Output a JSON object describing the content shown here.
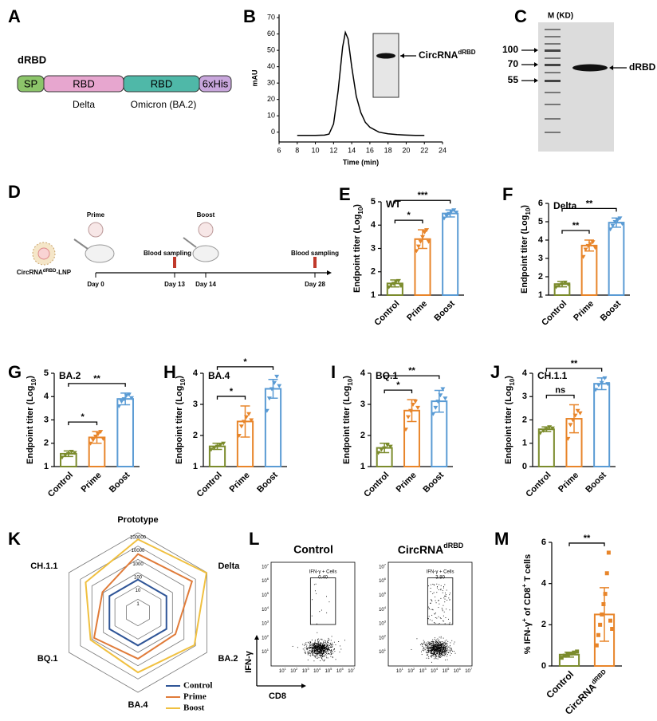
{
  "panels": {
    "A": {
      "label": "A",
      "title": "dRBD",
      "segments": [
        "SP",
        "RBD",
        "RBD",
        "6xHis"
      ],
      "captions": [
        "Delta",
        "Omicron (BA.2)"
      ]
    },
    "C": {
      "label": "C",
      "marker_header": "M (KD)",
      "markers": [
        100,
        70,
        55
      ],
      "band_label": "dRBD"
    },
    "D": {
      "label": "D",
      "vaccine": "CircRNA",
      "vaccine_sup": "dRBD",
      "vaccine_end": "-LNP",
      "prime": "Prime",
      "boost": "Boost",
      "sampling": "Blood sampling",
      "days": [
        "Day 0",
        "Day 13",
        "Day 14",
        "Day 28"
      ]
    },
    "L": {
      "label": "L",
      "titles": [
        {
          "text": "Control"
        },
        {
          "text": "CircRNA",
          "sup": "dRBD"
        }
      ],
      "gate_label": "IFN-γ + Cells",
      "gate_values": [
        "0.40",
        "3.80"
      ],
      "y_axis": "IFN-γ",
      "x_axis": "CD8",
      "axis_base": "10",
      "axis_exponents": [
        1,
        2,
        3,
        4,
        5,
        6,
        7
      ]
    }
  },
  "chart_data": [
    {
      "type": "line",
      "label": "B",
      "x_label": "Time (min)",
      "y_label": "mAU",
      "inset_label": "CircRNA",
      "inset_sup": "dRBD",
      "color": "#000000",
      "x": [
        8,
        9,
        10,
        11,
        11.5,
        12,
        12.5,
        13,
        13.3,
        13.6,
        14,
        14.5,
        15,
        15.5,
        16,
        17,
        18,
        19,
        20,
        21,
        22
      ],
      "values": [
        -2,
        -2,
        -2,
        -1.8,
        -1.2,
        5,
        25,
        52,
        61,
        57,
        40,
        22,
        12,
        6,
        3,
        0,
        -1,
        -1.5,
        -1.8,
        -2,
        -2
      ],
      "xlim": [
        6,
        24
      ],
      "xticks": [
        6,
        8,
        10,
        12,
        14,
        16,
        18,
        20,
        22,
        24
      ],
      "ylim": [
        -6,
        72
      ],
      "yticks": [
        0,
        10,
        20,
        30,
        40,
        50,
        60,
        70
      ]
    },
    {
      "type": "bar",
      "label": "E",
      "title": "WT",
      "y_label": [
        {
          "text": "Endpoint titer (Log"
        },
        {
          "text": "10",
          "shift": "sub"
        },
        {
          "text": ")"
        }
      ],
      "categories": [
        "Control",
        "Prime",
        "Boost"
      ],
      "colors": [
        "#7b8b2c",
        "#e8852a",
        "#5a9bd4"
      ],
      "values": [
        1.5,
        3.4,
        4.5
      ],
      "errors": [
        0.15,
        0.4,
        0.15
      ],
      "points": [
        [
          1.35,
          1.45,
          1.5,
          1.6,
          1.62,
          1.4
        ],
        [
          2.9,
          3.1,
          3.3,
          3.5,
          3.7,
          3.8,
          3.3
        ],
        [
          4.3,
          4.4,
          4.5,
          4.6,
          4.65,
          4.55
        ]
      ],
      "ylim": [
        1,
        5
      ],
      "yticks": [
        1,
        2,
        3,
        4,
        5
      ],
      "significance": [
        {
          "from": 0,
          "to": 1,
          "label": "*"
        },
        {
          "from": 0,
          "to": 2,
          "label": "***"
        }
      ]
    },
    {
      "type": "bar",
      "label": "F",
      "title": "Delta",
      "y_label": [
        {
          "text": "Endpoint titer (Log"
        },
        {
          "text": "10",
          "shift": "sub"
        },
        {
          "text": ")"
        }
      ],
      "categories": [
        "Control",
        "Prime",
        "Boost"
      ],
      "colors": [
        "#7b8b2c",
        "#e8852a",
        "#5a9bd4"
      ],
      "values": [
        1.6,
        3.7,
        4.95
      ],
      "errors": [
        0.15,
        0.3,
        0.25
      ],
      "points": [
        [
          1.45,
          1.55,
          1.6,
          1.7,
          1.6
        ],
        [
          3.1,
          3.5,
          3.7,
          3.8,
          3.9,
          3.6
        ],
        [
          4.6,
          4.8,
          5.0,
          5.1,
          5.2,
          4.9
        ]
      ],
      "ylim": [
        1,
        6
      ],
      "yticks": [
        1,
        2,
        3,
        4,
        5,
        6
      ],
      "significance": [
        {
          "from": 0,
          "to": 1,
          "label": "**"
        },
        {
          "from": 0,
          "to": 2,
          "label": "**"
        }
      ]
    },
    {
      "type": "bar",
      "label": "G",
      "title": "BA.2",
      "y_label": [
        {
          "text": "Endpoint titer (Log"
        },
        {
          "text": "10",
          "shift": "sub"
        },
        {
          "text": ")"
        }
      ],
      "categories": [
        "Control",
        "Prime",
        "Boost"
      ],
      "colors": [
        "#7b8b2c",
        "#e8852a",
        "#5a9bd4"
      ],
      "values": [
        1.55,
        2.25,
        3.9
      ],
      "errors": [
        0.12,
        0.25,
        0.25
      ],
      "points": [
        [
          1.4,
          1.5,
          1.55,
          1.65,
          1.6
        ],
        [
          2.0,
          2.15,
          2.3,
          2.4,
          2.5,
          2.2
        ],
        [
          3.6,
          3.8,
          3.9,
          4.05,
          4.1,
          3.95
        ]
      ],
      "ylim": [
        1,
        5
      ],
      "yticks": [
        1,
        2,
        3,
        4,
        5
      ],
      "significance": [
        {
          "from": 0,
          "to": 1,
          "label": "*"
        },
        {
          "from": 0,
          "to": 2,
          "label": "**"
        }
      ]
    },
    {
      "type": "bar",
      "label": "H",
      "title": "BA.4",
      "y_label": [
        {
          "text": "Endpoint titer (Log"
        },
        {
          "text": "10",
          "shift": "sub"
        },
        {
          "text": ")"
        }
      ],
      "categories": [
        "Control",
        "Prime",
        "Boost"
      ],
      "colors": [
        "#7b8b2c",
        "#e8852a",
        "#5a9bd4"
      ],
      "values": [
        1.65,
        2.45,
        3.5
      ],
      "errors": [
        0.1,
        0.5,
        0.3
      ],
      "points": [
        [
          1.55,
          1.6,
          1.65,
          1.7,
          1.75
        ],
        [
          2.0,
          2.3,
          2.45,
          2.6,
          2.7,
          2.5
        ],
        [
          2.8,
          3.2,
          3.5,
          3.7,
          3.9,
          3.6
        ]
      ],
      "ylim": [
        1,
        4
      ],
      "yticks": [
        1,
        2,
        3,
        4
      ],
      "significance": [
        {
          "from": 0,
          "to": 1,
          "label": "*"
        },
        {
          "from": 0,
          "to": 2,
          "label": "*"
        }
      ]
    },
    {
      "type": "bar",
      "label": "I",
      "title": "BQ.1",
      "y_label": [
        {
          "text": "Endpoint titer (Log"
        },
        {
          "text": "10",
          "shift": "sub"
        },
        {
          "text": ")"
        }
      ],
      "categories": [
        "Control",
        "Prime",
        "Boost"
      ],
      "colors": [
        "#7b8b2c",
        "#e8852a",
        "#5a9bd4"
      ],
      "values": [
        1.6,
        2.8,
        3.1
      ],
      "errors": [
        0.15,
        0.35,
        0.35
      ],
      "points": [
        [
          1.45,
          1.55,
          1.6,
          1.7,
          1.65
        ],
        [
          2.2,
          2.6,
          2.8,
          3.0,
          3.1,
          2.9
        ],
        [
          2.7,
          2.9,
          3.1,
          3.3,
          3.5,
          3.2
        ]
      ],
      "ylim": [
        1,
        4
      ],
      "yticks": [
        1,
        2,
        3,
        4
      ],
      "significance": [
        {
          "from": 0,
          "to": 1,
          "label": "*"
        },
        {
          "from": 0,
          "to": 2,
          "label": "**"
        }
      ]
    },
    {
      "type": "bar",
      "label": "J",
      "title": "CH.1.1",
      "y_label": [
        {
          "text": "Endpoint titer (Log"
        },
        {
          "text": "10",
          "shift": "sub"
        },
        {
          "text": ")"
        }
      ],
      "categories": [
        "Control",
        "Prime",
        "Boost"
      ],
      "colors": [
        "#7b8b2c",
        "#e8852a",
        "#5a9bd4"
      ],
      "values": [
        1.6,
        2.05,
        3.55
      ],
      "errors": [
        0.1,
        0.6,
        0.25
      ],
      "points": [
        [
          1.45,
          1.55,
          1.6,
          1.7,
          1.65
        ],
        [
          1.2,
          1.8,
          2.0,
          2.2,
          2.4,
          2.3
        ],
        [
          3.3,
          3.5,
          3.6,
          3.8,
          3.55
        ]
      ],
      "ylim": [
        0,
        4
      ],
      "yticks": [
        0,
        1,
        2,
        3,
        4
      ],
      "significance": [
        {
          "from": 0,
          "to": 1,
          "label": "ns"
        },
        {
          "from": 0,
          "to": 2,
          "label": "**"
        }
      ]
    },
    {
      "type": "radar",
      "label": "K",
      "axes": [
        "Prototype",
        "Delta",
        "BA.2",
        "BA.4",
        "BQ.1",
        "CH.1.1"
      ],
      "rlim": [
        0.1,
        100000
      ],
      "rticks": [
        1,
        10,
        100,
        1000,
        10000,
        100000
      ],
      "log_scale": true,
      "legend": "lower right",
      "series": [
        {
          "name": "Control",
          "color": "#2f5597",
          "values": [
            30,
            30,
            30,
            30,
            30,
            30
          ]
        },
        {
          "name": "Prime",
          "color": "#e07b39",
          "values": [
            2500,
            5000,
            180,
            300,
            650,
            120
          ]
        },
        {
          "name": "Boost",
          "color": "#f0c040",
          "values": [
            32000,
            90000,
            8000,
            3200,
            1300,
            3500
          ]
        }
      ]
    },
    {
      "type": "bar",
      "label": "M",
      "y_label": [
        {
          "text": "% IFN-γ"
        },
        {
          "text": "+",
          "shift": "super"
        },
        {
          "text": " of CD8"
        },
        {
          "text": "+",
          "shift": "super"
        },
        {
          "text": " T cells"
        }
      ],
      "categories": [
        "Control",
        "CircRNA"
      ],
      "category_sup": [
        null,
        "dRBD"
      ],
      "colors": [
        "#7b8b2c",
        "#e8852a"
      ],
      "values": [
        0.55,
        2.5
      ],
      "errors": [
        0.12,
        1.3
      ],
      "points": [
        [
          0.4,
          0.5,
          0.55,
          0.6,
          0.65,
          0.7
        ],
        [
          1.0,
          1.5,
          2.0,
          2.5,
          3.0,
          3.5,
          4.5,
          5.5,
          2.2,
          1.8
        ]
      ],
      "ylim": [
        0,
        6
      ],
      "yticks": [
        0,
        2,
        4,
        6
      ],
      "significance": [
        {
          "from": 0,
          "to": 1,
          "label": "**"
        }
      ]
    }
  ]
}
